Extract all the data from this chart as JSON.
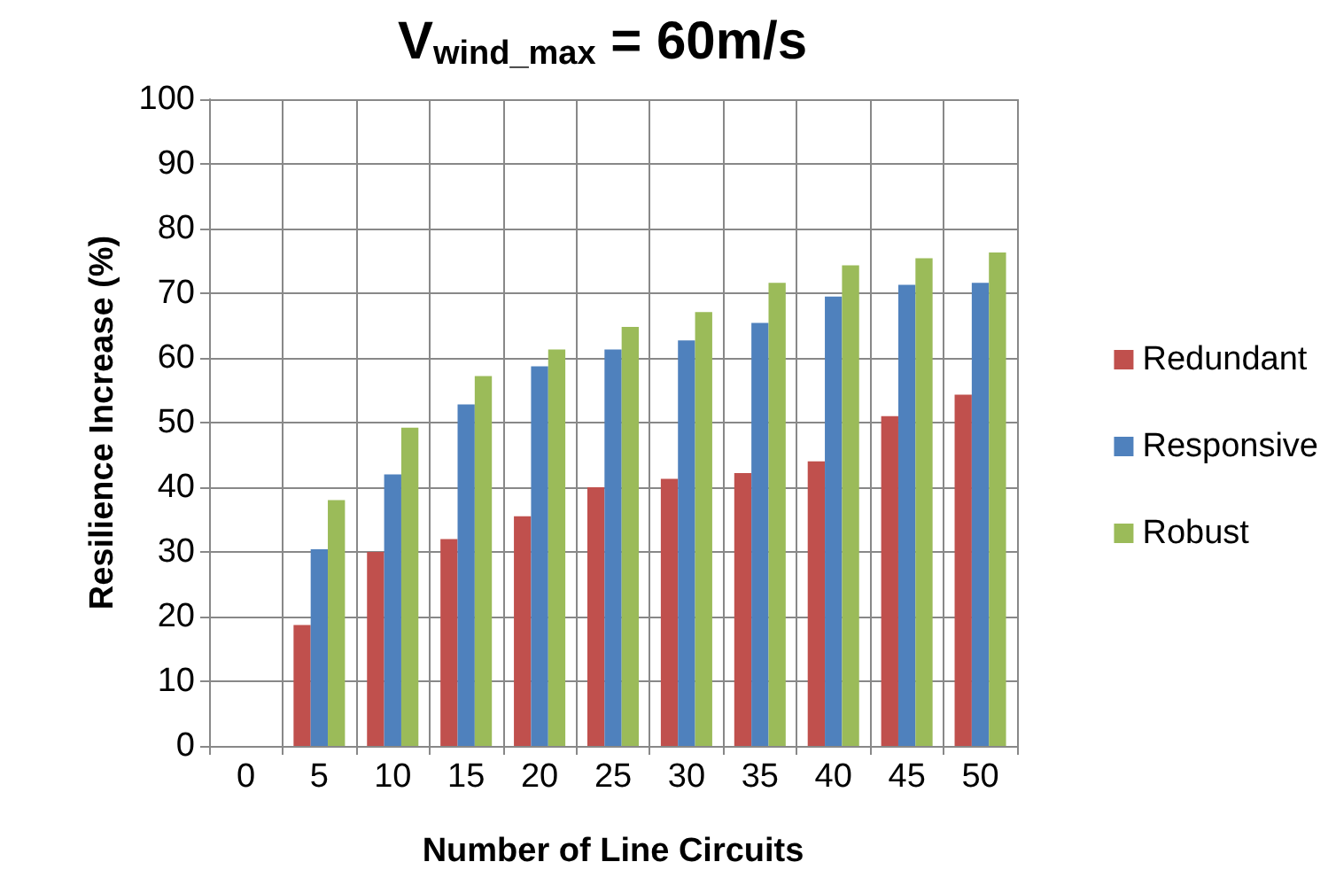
{
  "chart_data": {
    "type": "bar",
    "title": "V$_{wind_max}$ = 60m/s",
    "xlabel": "Number of Line Circuits",
    "ylabel": "Resilience Increase (%)",
    "categories": [
      "0",
      "5",
      "10",
      "15",
      "20",
      "25",
      "30",
      "35",
      "40",
      "45",
      "50"
    ],
    "series": [
      {
        "name": "Redundant",
        "color": "#c0504d",
        "values": [
          null,
          18.7,
          30,
          32,
          35.5,
          40,
          41.3,
          42.2,
          44,
          51,
          54.3
        ]
      },
      {
        "name": "Responsive",
        "color": "#4f81bd",
        "values": [
          null,
          30.4,
          42,
          52.8,
          58.7,
          61.3,
          62.7,
          65.4,
          69.5,
          71.3,
          71.6
        ]
      },
      {
        "name": "Robust",
        "color": "#9bbb59",
        "values": [
          null,
          38,
          49.2,
          57.2,
          61.3,
          64.8,
          67.1,
          71.6,
          74.3,
          75.4,
          76.3
        ]
      }
    ],
    "ylim": [
      0,
      100
    ],
    "yticks": [
      0,
      10,
      20,
      30,
      40,
      50,
      60,
      70,
      80,
      90,
      100
    ],
    "grid": true,
    "legend": "right"
  }
}
